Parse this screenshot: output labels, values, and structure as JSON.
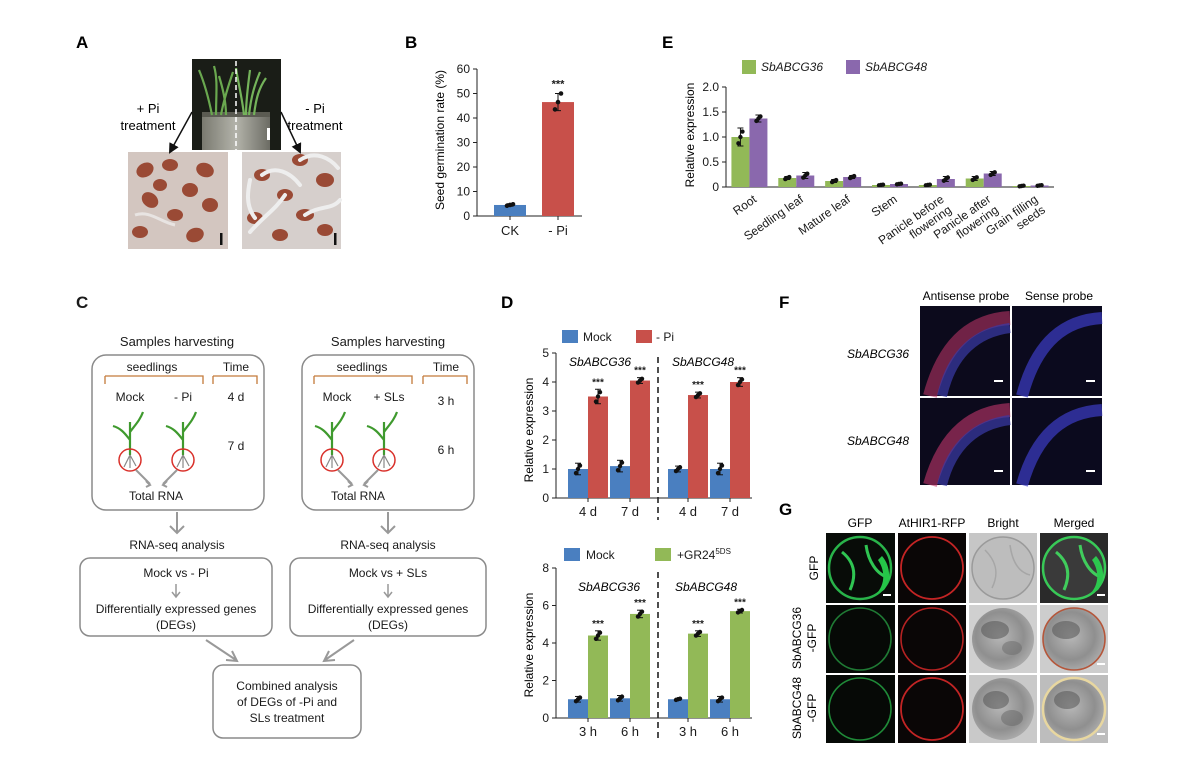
{
  "panels": {
    "A": {
      "letter": "A",
      "plus_label": [
        "+ Pi",
        "treatment"
      ],
      "minus_label": [
        "- Pi",
        "treatment"
      ]
    },
    "B": {
      "letter": "B",
      "sig": "***"
    },
    "C": {
      "letter": "C",
      "left": {
        "title": "Samples harvesting",
        "col1": "seedlings",
        "col2": "Time",
        "cond1": "Mock",
        "cond2": "- Pi",
        "time1": "4 d",
        "time2": "7 d",
        "rna": "Total RNA",
        "analysis": "RNA-seq analysis",
        "compare": "Mock vs - Pi",
        "deg1": "Differentially expressed genes",
        "deg2": "(DEGs)"
      },
      "right": {
        "title": "Samples harvesting",
        "col1": "seedlings",
        "col2": "Time",
        "cond1": "Mock",
        "cond2": "+ SLs",
        "time1": "3 h",
        "time2": "6 h",
        "rna": "Total RNA",
        "analysis": "RNA-seq analysis",
        "compare": "Mock vs + SLs",
        "deg1": "Differentially expressed genes",
        "deg2": "(DEGs)"
      },
      "combined": [
        "Combined analysis",
        "of DEGs of -Pi and",
        "SLs treatment"
      ]
    },
    "D": {
      "letter": "D",
      "gene1": "SbABCG36",
      "gene2": "SbABCG48",
      "treat2_base": "+GR24",
      "treat2_sup": "5DS",
      "sig": "***"
    },
    "E": {
      "letter": "E"
    },
    "F": {
      "letter": "F",
      "col1": "Antisense probe",
      "col2": "Sense probe",
      "row1": "SbABCG36",
      "row2": "SbABCG48"
    },
    "G": {
      "letter": "G",
      "cols": [
        "GFP",
        "AtHIR1-RFP",
        "Bright",
        "Merged"
      ],
      "row1": [
        "GFP"
      ],
      "row2": [
        "SbABCG36",
        "-GFP"
      ],
      "row3": [
        "SbABCG48",
        "-GFP"
      ]
    }
  },
  "chart_data": [
    {
      "id": "B",
      "type": "bar",
      "categories": [
        "CK",
        "- Pi"
      ],
      "values": [
        4.5,
        46.5
      ],
      "errors": [
        0.5,
        3.5
      ],
      "points": [
        [
          4.2,
          4.5,
          4.8
        ],
        [
          43.5,
          46.5,
          50.0
        ]
      ],
      "colors": [
        "#4a7fc0",
        "#c8504a"
      ],
      "ylabel": "Seed germination rate (%)",
      "ylim": [
        0,
        60
      ],
      "yticks": [
        0,
        10,
        20,
        30,
        40,
        50,
        60
      ]
    },
    {
      "id": "D1",
      "type": "bar",
      "categories": [
        "4 d",
        "7 d",
        "4 d",
        "7 d"
      ],
      "series": [
        {
          "name": "Mock",
          "color": "#4a7fc0",
          "values": [
            1.0,
            1.1,
            1.0,
            1.0
          ],
          "errors": [
            0.2,
            0.2,
            0.1,
            0.2
          ]
        },
        {
          "name": "- Pi",
          "color": "#c8504a",
          "values": [
            3.5,
            4.05,
            3.55,
            4.0
          ],
          "errors": [
            0.25,
            0.1,
            0.1,
            0.15
          ]
        }
      ],
      "ylabel": "Relative expression",
      "ylim": [
        0,
        5
      ],
      "yticks": [
        0,
        1,
        2,
        3,
        4,
        5
      ]
    },
    {
      "id": "D2",
      "type": "bar",
      "categories": [
        "3 h",
        "6 h",
        "3 h",
        "6 h"
      ],
      "series": [
        {
          "name": "Mock",
          "color": "#4a7fc0",
          "values": [
            1.0,
            1.05,
            1.0,
            1.0
          ],
          "errors": [
            0.15,
            0.15,
            0.05,
            0.15
          ]
        },
        {
          "name": "+GR24 5DS",
          "color": "#92b957",
          "values": [
            4.4,
            5.55,
            4.5,
            5.7
          ],
          "errors": [
            0.25,
            0.2,
            0.15,
            0.1
          ]
        }
      ],
      "ylabel": "Relative expression",
      "ylim": [
        0,
        8
      ],
      "yticks": [
        0,
        2,
        4,
        6,
        8
      ]
    },
    {
      "id": "E",
      "type": "bar",
      "categories": [
        "Root",
        "Seedling leaf",
        "Mature leaf",
        "Stem",
        "Panicle before flowering",
        "Panicle after flowering",
        "Grain filling seeds"
      ],
      "category_lines": [
        [
          "Root"
        ],
        [
          "Seedling leaf"
        ],
        [
          "Mature leaf"
        ],
        [
          "Stem"
        ],
        [
          "Panicle before",
          "flowering"
        ],
        [
          "Panicle after",
          "flowering"
        ],
        [
          "Grain filling",
          "seeds"
        ]
      ],
      "series": [
        {
          "name": "SbABCG36",
          "color": "#92b957",
          "values": [
            1.0,
            0.18,
            0.12,
            0.04,
            0.04,
            0.17,
            0.02
          ],
          "errors": [
            0.18,
            0.03,
            0.03,
            0.01,
            0.01,
            0.04,
            0.01
          ]
        },
        {
          "name": "SbABCG48",
          "color": "#8a68ad",
          "values": [
            1.37,
            0.23,
            0.2,
            0.06,
            0.16,
            0.27,
            0.03
          ],
          "errors": [
            0.07,
            0.06,
            0.03,
            0.01,
            0.05,
            0.04,
            0.01
          ]
        }
      ],
      "ylabel": "Relative expression",
      "ylim": [
        0,
        2.0
      ],
      "yticks": [
        "0",
        "0.5",
        "1.0",
        "1.5",
        "2.0"
      ]
    }
  ]
}
